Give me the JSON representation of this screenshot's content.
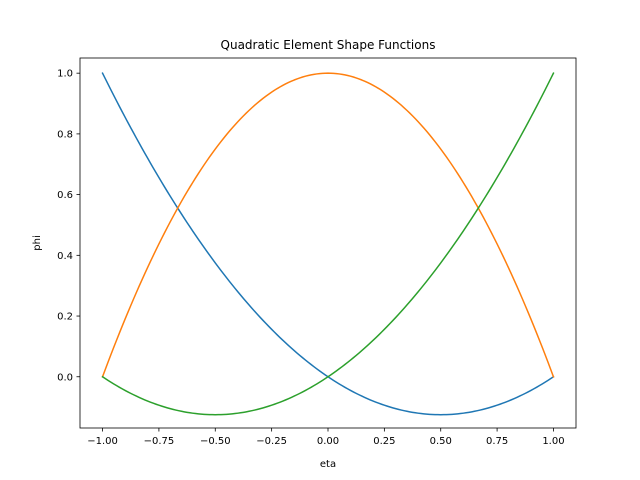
{
  "chart_data": {
    "type": "line",
    "title": "Quadratic Element Shape Functions",
    "xlabel": "eta",
    "ylabel": "phi",
    "xlim": [
      -1.1,
      1.1
    ],
    "ylim": [
      -0.1688,
      1.05
    ],
    "grid": false,
    "x_ticks": [
      -1.0,
      -0.75,
      -0.5,
      -0.25,
      0.0,
      0.25,
      0.5,
      0.75,
      1.0
    ],
    "x_tick_labels": [
      "−1.00",
      "−0.75",
      "−0.50",
      "−0.25",
      "0.00",
      "0.25",
      "0.50",
      "0.75",
      "1.00"
    ],
    "y_ticks": [
      0.0,
      0.2,
      0.4,
      0.6,
      0.8,
      1.0
    ],
    "y_tick_labels": [
      "0.0",
      "0.2",
      "0.4",
      "0.6",
      "0.8",
      "1.0"
    ],
    "x": [
      -1.0,
      -0.9,
      -0.8,
      -0.7,
      -0.6,
      -0.5,
      -0.4,
      -0.3,
      -0.2,
      -0.1,
      0.0,
      0.1,
      0.2,
      0.3,
      0.4,
      0.5,
      0.6,
      0.7,
      0.8,
      0.9,
      1.0
    ],
    "series": [
      {
        "color": "#1f77b4",
        "values": [
          1.0,
          0.855,
          0.72,
          0.595,
          0.48,
          0.375,
          0.28,
          0.195,
          0.12,
          0.055,
          0.0,
          -0.045,
          -0.08,
          -0.105,
          -0.12,
          -0.125,
          -0.12,
          -0.105,
          -0.08,
          -0.045,
          0.0
        ]
      },
      {
        "color": "#ff7f0e",
        "values": [
          0.0,
          0.19,
          0.36,
          0.51,
          0.64,
          0.75,
          0.84,
          0.91,
          0.96,
          0.99,
          1.0,
          0.99,
          0.96,
          0.91,
          0.84,
          0.75,
          0.64,
          0.51,
          0.36,
          0.19,
          0.0
        ]
      },
      {
        "color": "#2ca02c",
        "values": [
          0.0,
          -0.045,
          -0.08,
          -0.105,
          -0.12,
          -0.125,
          -0.12,
          -0.105,
          -0.08,
          -0.045,
          0.0,
          0.055,
          0.12,
          0.195,
          0.28,
          0.375,
          0.48,
          0.595,
          0.72,
          0.855,
          1.0
        ]
      }
    ]
  }
}
